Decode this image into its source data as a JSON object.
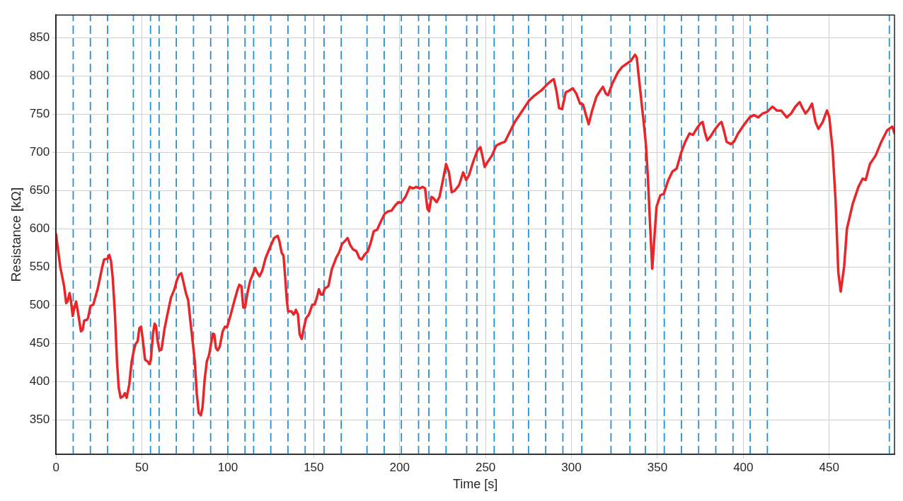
{
  "chart_data": {
    "type": "line",
    "xlabel": "Time [s]",
    "ylabel": "Resistance [kΩ]",
    "xlim": [
      0,
      488
    ],
    "ylim": [
      305,
      880
    ],
    "xticks": [
      0,
      50,
      100,
      150,
      200,
      250,
      300,
      350,
      400,
      450
    ],
    "yticks": [
      350,
      400,
      450,
      500,
      550,
      600,
      650,
      700,
      750,
      800,
      850
    ],
    "grid": true,
    "legend": false,
    "marker": "none",
    "line_style": "solid",
    "series": [
      {
        "color": "#e8262a",
        "x": [
          0,
          2.5,
          4.7,
          5.9,
          6.7,
          7.9,
          8.7,
          9.7,
          10.5,
          11.7,
          12.7,
          14.5,
          15.5,
          16.4,
          18,
          18.7,
          20,
          21.7,
          24.2,
          27,
          28,
          30,
          31,
          32,
          33,
          34.3,
          35.5,
          36.5,
          37.6,
          39.1,
          40.1,
          41.1,
          42.6,
          44,
          45.2,
          46.2,
          47.5,
          48.5,
          49.5,
          50.5,
          51.8,
          53.5,
          54.3,
          55.2,
          56.4,
          57.4,
          58.2,
          59,
          60.2,
          61.4,
          63.2,
          65.2,
          66.9,
          68.9,
          70.2,
          71.6,
          72.9,
          74.2,
          75.6,
          76.9,
          78.3,
          79.4,
          80.8,
          81.9,
          83.1,
          84.3,
          85.3,
          86.5,
          87.8,
          89.1,
          90.3,
          91.3,
          92.1,
          93.1,
          94.1,
          95.3,
          97,
          98.3,
          99.5,
          101.7,
          103.7,
          105.7,
          106.7,
          107.9,
          109,
          110,
          111.4,
          113,
          114.4,
          115.9,
          117,
          118.4,
          120,
          122,
          124.4,
          126.9,
          129,
          130,
          131.3,
          132.4,
          133.4,
          134.3,
          135.1,
          137,
          138.3,
          139.6,
          140.8,
          141.8,
          143,
          144.2,
          145.5,
          147.2,
          149.2,
          150.5,
          151.8,
          153,
          154.2,
          155.2,
          156.4,
          158.5,
          160.5,
          163,
          164.7,
          166.4,
          168.9,
          169.7,
          171.4,
          173,
          174.8,
          176.5,
          177.8,
          179.5,
          181.5,
          183.2,
          184.9,
          186.9,
          189.1,
          191.3,
          193.3,
          195.3,
          197.5,
          199.2,
          200.8,
          203.4,
          205.9,
          207.6,
          209.7,
          211.8,
          213.4,
          214.8,
          216.1,
          217.1,
          218.5,
          219.8,
          221.5,
          223.2,
          225.2,
          227,
          228.7,
          230.3,
          232,
          234.5,
          237,
          238.7,
          240.3,
          242.8,
          245.3,
          247,
          248.3,
          249.5,
          251,
          253.7,
          256.2,
          258.7,
          261.2,
          263.7,
          267,
          270.3,
          275.3,
          278.7,
          282.8,
          286.2,
          288.3,
          289.7,
          291.2,
          292.8,
          294.5,
          296.7,
          298.7,
          300.8,
          302.8,
          305,
          306.7,
          308.7,
          310,
          312,
          314.5,
          317,
          318.3,
          320,
          321.3,
          323.7,
          327,
          329.5,
          332,
          334.5,
          337,
          338,
          339.5,
          342,
          343.3,
          344.5,
          345.7,
          347,
          349.5,
          351.7,
          353.7,
          356.2,
          358.7,
          361.2,
          363.7,
          366.2,
          368.7,
          370.7,
          372.8,
          375,
          376.3,
          377.8,
          379,
          381.2,
          383.7,
          386.2,
          387.3,
          388.7,
          390.3,
          392.8,
          394.5,
          397,
          400.3,
          403.7,
          406.2,
          408.7,
          411.2,
          413.7,
          417,
          419.5,
          422,
          425.3,
          427.8,
          430.3,
          432.8,
          434.5,
          436.2,
          438.3,
          440,
          442,
          443.7,
          446.2,
          448.7,
          450,
          452,
          453.7,
          455.3,
          456.7,
          458.7,
          460.3,
          463.7,
          467,
          469.5,
          471.2,
          473.7,
          477,
          480.3,
          483.7,
          486.7,
          488
        ],
        "values": [
          593,
          550,
          525,
          503,
          505,
          516,
          506,
          486,
          495,
          505,
          492,
          466,
          468,
          480,
          481,
          484,
          499,
          501,
          521,
          551,
          560,
          561,
          566,
          558,
          536,
          488,
          426,
          392,
          379,
          381,
          385,
          379,
          396,
          426,
          440,
          449,
          453,
          470,
          472,
          455,
          429,
          426,
          423,
          429,
          462,
          476,
          473,
          455,
          441,
          442,
          470,
          492,
          510,
          521,
          532,
          540,
          542,
          530,
          516,
          507,
          477,
          455,
          426,
          385,
          359,
          356,
          367,
          403,
          427,
          435,
          451,
          463,
          462,
          444,
          441,
          446,
          466,
          472,
          471,
          488,
          505,
          521,
          527,
          525,
          497,
          497,
          516,
          532,
          540,
          549,
          543,
          538,
          545,
          562,
          575,
          588,
          591,
          584,
          569,
          565,
          536,
          507,
          492,
          492,
          488,
          494,
          488,
          462,
          456,
          470,
          483,
          488,
          501,
          501,
          510,
          521,
          514,
          514,
          522,
          525,
          547,
          562,
          569,
          580,
          586,
          588,
          578,
          573,
          571,
          562,
          560,
          566,
          571,
          582,
          597,
          599,
          610,
          620,
          623,
          624,
          631,
          635,
          634,
          642,
          655,
          653,
          655,
          653,
          655,
          653,
          627,
          623,
          642,
          640,
          635,
          642,
          664,
          685,
          674,
          648,
          650,
          657,
          674,
          664,
          670,
          688,
          703,
          707,
          694,
          681,
          687,
          696,
          709,
          712,
          714,
          725,
          740,
          751,
          768,
          775,
          782,
          790,
          794,
          796,
          781,
          758,
          757,
          779,
          781,
          784,
          777,
          764,
          763,
          747,
          737,
          755,
          773,
          782,
          786,
          777,
          775,
          790,
          805,
          812,
          816,
          820,
          828,
          824,
          792,
          740,
          711,
          666,
          607,
          548,
          629,
          644,
          646,
          663,
          675,
          679,
          699,
          714,
          725,
          723,
          731,
          738,
          740,
          725,
          716,
          722,
          731,
          738,
          740,
          729,
          714,
          711,
          714,
          725,
          736,
          746,
          749,
          746,
          751,
          753,
          760,
          755,
          755,
          746,
          751,
          760,
          766,
          758,
          751,
          757,
          764,
          740,
          731,
          740,
          755,
          747,
          703,
          637,
          543,
          518,
          551,
          600,
          633,
          655,
          666,
          664,
          685,
          696,
          714,
          729,
          734,
          725
        ]
      }
    ],
    "ref_lines": [
      {
        "axis": "x",
        "value": 10,
        "color": "#2a8fd0",
        "line_style": "dashed"
      },
      {
        "axis": "x",
        "value": 20,
        "color": "#2a8fd0",
        "line_style": "dashed"
      },
      {
        "axis": "x",
        "value": 30,
        "color": "#2a8fd0",
        "line_style": "dashed"
      },
      {
        "axis": "x",
        "value": 45,
        "color": "#2a8fd0",
        "line_style": "dashed"
      },
      {
        "axis": "x",
        "value": 55,
        "color": "#2a8fd0",
        "line_style": "dashed"
      },
      {
        "axis": "x",
        "value": 60,
        "color": "#2a8fd0",
        "line_style": "dashed"
      },
      {
        "axis": "x",
        "value": 70,
        "color": "#2a8fd0",
        "line_style": "dashed"
      },
      {
        "axis": "x",
        "value": 80,
        "color": "#2a8fd0",
        "line_style": "dashed"
      },
      {
        "axis": "x",
        "value": 90,
        "color": "#2a8fd0",
        "line_style": "dashed"
      },
      {
        "axis": "x",
        "value": 100,
        "color": "#2a8fd0",
        "line_style": "dashed"
      },
      {
        "axis": "x",
        "value": 110,
        "color": "#2a8fd0",
        "line_style": "dashed"
      },
      {
        "axis": "x",
        "value": 115,
        "color": "#2a8fd0",
        "line_style": "dashed"
      },
      {
        "axis": "x",
        "value": 125,
        "color": "#2a8fd0",
        "line_style": "dashed"
      },
      {
        "axis": "x",
        "value": 135,
        "color": "#2a8fd0",
        "line_style": "dashed"
      },
      {
        "axis": "x",
        "value": 145,
        "color": "#2a8fd0",
        "line_style": "dashed"
      },
      {
        "axis": "x",
        "value": 156,
        "color": "#2a8fd0",
        "line_style": "dashed"
      },
      {
        "axis": "x",
        "value": 166,
        "color": "#2a8fd0",
        "line_style": "dashed"
      },
      {
        "axis": "x",
        "value": 181,
        "color": "#2a8fd0",
        "line_style": "dashed"
      },
      {
        "axis": "x",
        "value": 191,
        "color": "#2a8fd0",
        "line_style": "dashed"
      },
      {
        "axis": "x",
        "value": 201,
        "color": "#2a8fd0",
        "line_style": "dashed"
      },
      {
        "axis": "x",
        "value": 211,
        "color": "#2a8fd0",
        "line_style": "dashed"
      },
      {
        "axis": "x",
        "value": 217,
        "color": "#2a8fd0",
        "line_style": "dashed"
      },
      {
        "axis": "x",
        "value": 227,
        "color": "#2a8fd0",
        "line_style": "dashed"
      },
      {
        "axis": "x",
        "value": 239,
        "color": "#2a8fd0",
        "line_style": "dashed"
      },
      {
        "axis": "x",
        "value": 245,
        "color": "#2a8fd0",
        "line_style": "dashed"
      },
      {
        "axis": "x",
        "value": 255,
        "color": "#2a8fd0",
        "line_style": "dashed"
      },
      {
        "axis": "x",
        "value": 266,
        "color": "#2a8fd0",
        "line_style": "dashed"
      },
      {
        "axis": "x",
        "value": 275,
        "color": "#2a8fd0",
        "line_style": "dashed"
      },
      {
        "axis": "x",
        "value": 285,
        "color": "#2a8fd0",
        "line_style": "dashed"
      },
      {
        "axis": "x",
        "value": 295,
        "color": "#2a8fd0",
        "line_style": "dashed"
      },
      {
        "axis": "x",
        "value": 306,
        "color": "#2a8fd0",
        "line_style": "dashed"
      },
      {
        "axis": "x",
        "value": 323,
        "color": "#2a8fd0",
        "line_style": "dashed"
      },
      {
        "axis": "x",
        "value": 334,
        "color": "#2a8fd0",
        "line_style": "dashed"
      },
      {
        "axis": "x",
        "value": 343,
        "color": "#2a8fd0",
        "line_style": "dashed"
      },
      {
        "axis": "x",
        "value": 354,
        "color": "#2a8fd0",
        "line_style": "dashed"
      },
      {
        "axis": "x",
        "value": 364,
        "color": "#2a8fd0",
        "line_style": "dashed"
      },
      {
        "axis": "x",
        "value": 374,
        "color": "#2a8fd0",
        "line_style": "dashed"
      },
      {
        "axis": "x",
        "value": 384,
        "color": "#2a8fd0",
        "line_style": "dashed"
      },
      {
        "axis": "x",
        "value": 394,
        "color": "#2a8fd0",
        "line_style": "dashed"
      },
      {
        "axis": "x",
        "value": 404,
        "color": "#2a8fd0",
        "line_style": "dashed"
      },
      {
        "axis": "x",
        "value": 414,
        "color": "#2a8fd0",
        "line_style": "dashed"
      },
      {
        "axis": "x",
        "value": 485,
        "color": "#2a8fd0",
        "line_style": "dashed"
      }
    ]
  }
}
